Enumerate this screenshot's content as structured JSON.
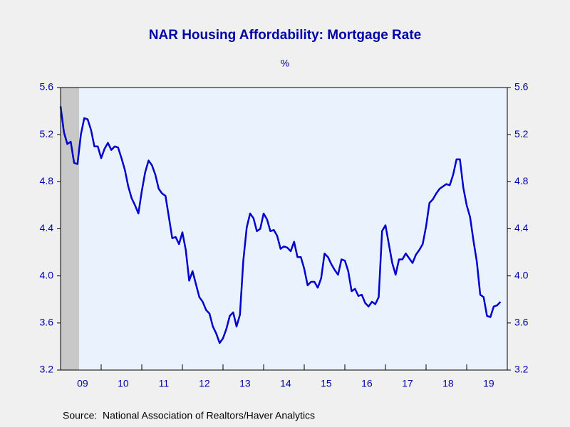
{
  "chart_data": {
    "type": "line",
    "title": "NAR Housing Affordability: Mortgage Rate",
    "subtitle": "%",
    "source": "Source:  National Association of Realtors/Haver Analytics",
    "categories": [
      null,
      null,
      null,
      null,
      null,
      null,
      "09",
      null,
      null,
      null,
      null,
      null,
      null,
      null,
      null,
      null,
      null,
      null,
      "10",
      null,
      null,
      null,
      null,
      null,
      null,
      null,
      null,
      null,
      null,
      null,
      "11",
      null,
      null,
      null,
      null,
      null,
      null,
      null,
      null,
      null,
      null,
      null,
      "12",
      null,
      null,
      null,
      null,
      null,
      null,
      null,
      null,
      null,
      null,
      null,
      "13",
      null,
      null,
      null,
      null,
      null,
      null,
      null,
      null,
      null,
      null,
      null,
      "14",
      null,
      null,
      null,
      null,
      null,
      null,
      null,
      null,
      null,
      null,
      null,
      "15",
      null,
      null,
      null,
      null,
      null,
      null,
      null,
      null,
      null,
      null,
      null,
      "16",
      null,
      null,
      null,
      null,
      null,
      null,
      null,
      null,
      null,
      null,
      null,
      "17",
      null,
      null,
      null,
      null,
      null,
      null,
      null,
      null,
      null,
      null,
      null,
      "18",
      null,
      null,
      null,
      null,
      null,
      null,
      null,
      null,
      null,
      null,
      null,
      "19",
      null,
      null,
      null,
      null
    ],
    "series": [
      {
        "name": "Mortgage Rate",
        "color": "#0000cc",
        "values": [
          5.44,
          5.22,
          5.12,
          5.14,
          4.96,
          4.95,
          5.2,
          5.34,
          5.33,
          5.24,
          5.1,
          5.1,
          5.0,
          5.08,
          5.13,
          5.07,
          5.1,
          5.09,
          5.0,
          4.9,
          4.76,
          4.66,
          4.6,
          4.53,
          4.72,
          4.88,
          4.98,
          4.94,
          4.86,
          4.74,
          4.7,
          4.68,
          4.5,
          4.32,
          4.33,
          4.27,
          4.37,
          4.22,
          3.96,
          4.04,
          3.93,
          3.82,
          3.78,
          3.71,
          3.68,
          3.57,
          3.51,
          3.43,
          3.47,
          3.55,
          3.66,
          3.69,
          3.57,
          3.67,
          4.13,
          4.41,
          4.53,
          4.49,
          4.38,
          4.4,
          4.53,
          4.48,
          4.38,
          4.39,
          4.34,
          4.23,
          4.25,
          4.24,
          4.21,
          4.29,
          4.16,
          4.16,
          4.06,
          3.92,
          3.95,
          3.95,
          3.9,
          3.98,
          4.19,
          4.16,
          4.1,
          4.05,
          4.01,
          4.14,
          4.13,
          4.04,
          3.87,
          3.89,
          3.83,
          3.84,
          3.77,
          3.74,
          3.78,
          3.76,
          3.82,
          4.38,
          4.43,
          4.27,
          4.11,
          4.01,
          4.14,
          4.14,
          4.19,
          4.15,
          4.11,
          4.18,
          4.22,
          4.27,
          4.42,
          4.62,
          4.65,
          4.7,
          4.74,
          4.76,
          4.78,
          4.77,
          4.86,
          4.99,
          4.99,
          4.75,
          4.6,
          4.5,
          4.3,
          4.12,
          3.84,
          3.82,
          3.66,
          3.65,
          3.74,
          3.75,
          3.78
        ]
      }
    ],
    "ylim": [
      3.2,
      5.6
    ],
    "yticks": [
      3.2,
      3.6,
      {
        "value": 4,
        "label": "4.0"
      },
      4.4,
      4.8,
      5.2,
      5.6
    ],
    "y2lim": [
      3.2,
      5.6
    ],
    "y2ticks": [
      3.2,
      3.6,
      {
        "value": 4,
        "label": "4.0"
      },
      4.4,
      4.8,
      5.2,
      5.6
    ]
  }
}
